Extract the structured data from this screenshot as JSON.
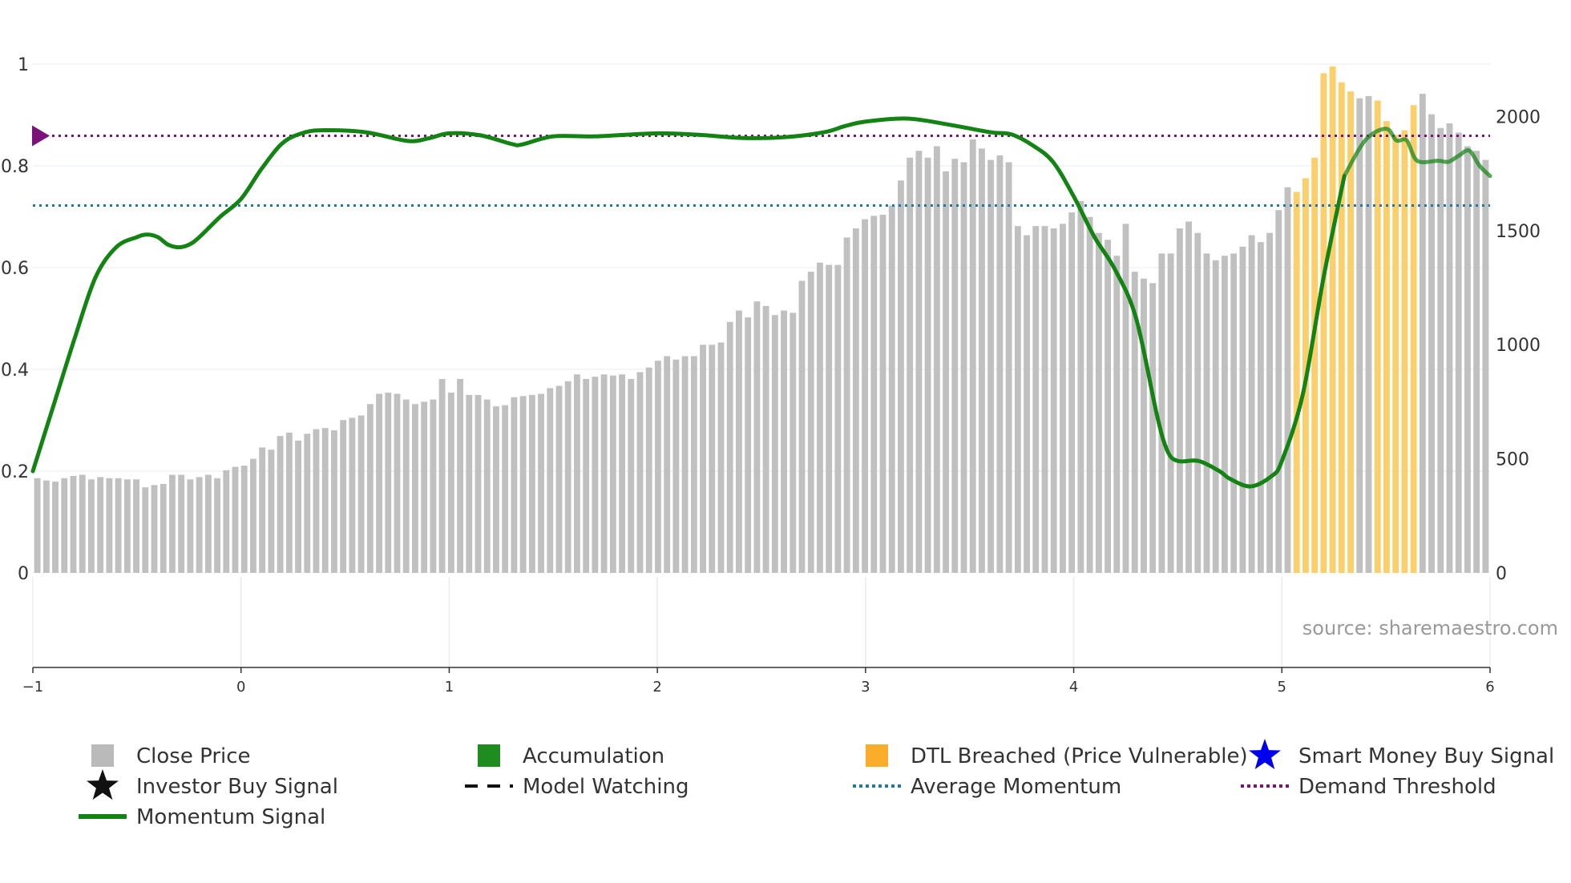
{
  "chart_data": {
    "type": "bar",
    "source": "source: sharemaestro.com",
    "left_axis": {
      "ticks": [
        {
          "v": 0,
          "label": "0"
        },
        {
          "v": 0.2,
          "label": "0.2"
        },
        {
          "v": 0.4,
          "label": "0.4"
        },
        {
          "v": 0.6,
          "label": "0.6"
        },
        {
          "v": 0.8,
          "label": "0.8"
        },
        {
          "v": 1,
          "label": "1"
        }
      ],
      "range": [
        0,
        1
      ]
    },
    "right_axis": {
      "ticks": [
        {
          "v": 0,
          "label": "0"
        },
        {
          "v": 500,
          "label": "500"
        },
        {
          "v": 1000,
          "label": "1000"
        },
        {
          "v": 1500,
          "label": "1500"
        },
        {
          "v": 2000,
          "label": "2000"
        }
      ],
      "range": [
        0,
        2230
      ]
    },
    "x_axis": {
      "ticks": [
        {
          "v": -1,
          "label": "−1"
        },
        {
          "v": 0,
          "label": "0"
        },
        {
          "v": 1,
          "label": "1"
        },
        {
          "v": 2,
          "label": "2"
        },
        {
          "v": 3,
          "label": "3"
        },
        {
          "v": 4,
          "label": "4"
        },
        {
          "v": 5,
          "label": "5"
        },
        {
          "v": 6,
          "label": "6"
        }
      ],
      "range": [
        -1,
        6
      ]
    },
    "close_price": {
      "x_start": -1,
      "x_end": 6,
      "values": [
        415,
        405,
        400,
        415,
        425,
        430,
        410,
        420,
        415,
        415,
        410,
        410,
        375,
        385,
        390,
        430,
        430,
        410,
        420,
        430,
        415,
        450,
        465,
        470,
        500,
        550,
        540,
        600,
        615,
        580,
        610,
        630,
        635,
        625,
        670,
        680,
        690,
        740,
        785,
        790,
        785,
        760,
        740,
        750,
        760,
        850,
        790,
        850,
        780,
        780,
        760,
        730,
        735,
        770,
        775,
        780,
        785,
        810,
        820,
        840,
        870,
        850,
        860,
        870,
        865,
        870,
        850,
        880,
        900,
        930,
        950,
        935,
        950,
        950,
        1000,
        1000,
        1010,
        1100,
        1150,
        1120,
        1190,
        1170,
        1130,
        1150,
        1140,
        1280,
        1320,
        1360,
        1350,
        1350,
        1470,
        1510,
        1550,
        1565,
        1570,
        1610,
        1720,
        1820,
        1850,
        1820,
        1870,
        1760,
        1815,
        1800,
        1900,
        1860,
        1810,
        1830,
        1800,
        1520,
        1480,
        1520,
        1520,
        1510,
        1530,
        1580,
        1630,
        1560,
        1490,
        1460,
        1390,
        1530,
        1320,
        1290,
        1270,
        1400,
        1400,
        1510,
        1540,
        1490,
        1400,
        1370,
        1390,
        1400,
        1430,
        1480,
        1450,
        1490,
        1590,
        1690,
        1670,
        1730,
        1820,
        2190,
        2220,
        2150,
        2110,
        2080,
        2090,
        2070,
        1980,
        1920,
        1940,
        2050,
        2100,
        2010,
        1950,
        1970,
        1930,
        1870,
        1850,
        1810
      ],
      "dtl_breached": [
        140,
        141,
        142,
        143,
        144,
        145,
        146,
        149,
        150,
        151,
        152,
        153
      ]
    },
    "momentum_signal": {
      "points": [
        [
          -1,
          0.2
        ],
        [
          -0.9,
          0.33
        ],
        [
          -0.8,
          0.46
        ],
        [
          -0.7,
          0.58
        ],
        [
          -0.6,
          0.64
        ],
        [
          -0.5,
          0.66
        ],
        [
          -0.45,
          0.665
        ],
        [
          -0.4,
          0.66
        ],
        [
          -0.35,
          0.645
        ],
        [
          -0.3,
          0.64
        ],
        [
          -0.25,
          0.645
        ],
        [
          -0.2,
          0.66
        ],
        [
          -0.1,
          0.7
        ],
        [
          0,
          0.735
        ],
        [
          0.1,
          0.795
        ],
        [
          0.2,
          0.845
        ],
        [
          0.3,
          0.865
        ],
        [
          0.4,
          0.87
        ],
        [
          0.6,
          0.866
        ],
        [
          0.8,
          0.849
        ],
        [
          0.9,
          0.854
        ],
        [
          1,
          0.864
        ],
        [
          1.15,
          0.86
        ],
        [
          1.3,
          0.843
        ],
        [
          1.35,
          0.842
        ],
        [
          1.5,
          0.858
        ],
        [
          1.7,
          0.858
        ],
        [
          2,
          0.864
        ],
        [
          2.2,
          0.861
        ],
        [
          2.4,
          0.855
        ],
        [
          2.6,
          0.856
        ],
        [
          2.8,
          0.866
        ],
        [
          2.9,
          0.878
        ],
        [
          3,
          0.887
        ],
        [
          3.2,
          0.893
        ],
        [
          3.4,
          0.881
        ],
        [
          3.6,
          0.866
        ],
        [
          3.7,
          0.862
        ],
        [
          3.8,
          0.841
        ],
        [
          3.9,
          0.808
        ],
        [
          4,
          0.74
        ],
        [
          4.1,
          0.66
        ],
        [
          4.2,
          0.595
        ],
        [
          4.3,
          0.5
        ],
        [
          4.4,
          0.31
        ],
        [
          4.45,
          0.24
        ],
        [
          4.5,
          0.22
        ],
        [
          4.6,
          0.22
        ],
        [
          4.7,
          0.2
        ],
        [
          4.75,
          0.185
        ],
        [
          4.85,
          0.17
        ],
        [
          4.95,
          0.19
        ],
        [
          5,
          0.22
        ],
        [
          5.1,
          0.35
        ],
        [
          5.2,
          0.58
        ],
        [
          5.3,
          0.78
        ],
        [
          5.4,
          0.85
        ],
        [
          5.5,
          0.873
        ],
        [
          5.55,
          0.85
        ],
        [
          5.6,
          0.85
        ],
        [
          5.65,
          0.81
        ],
        [
          5.75,
          0.81
        ],
        [
          5.8,
          0.808
        ],
        [
          5.85,
          0.82
        ],
        [
          5.9,
          0.83
        ],
        [
          5.95,
          0.8
        ],
        [
          6,
          0.78
        ]
      ],
      "faded_from": 5.28
    },
    "average_momentum": 0.722,
    "demand_threshold": 0.859,
    "colors": {
      "close_price": "#c0c0c0",
      "dtl_breached": "#fccf6d",
      "momentum": "#138413",
      "average_momentum": "#2276a8",
      "demand_threshold": "#7a127a",
      "grid": "#e6edf2",
      "axis": "#333333"
    },
    "legend": [
      {
        "label": "Close Price",
        "icon": "square-icon",
        "color": "#bababa"
      },
      {
        "label": "Accumulation",
        "icon": "square-icon",
        "color": "#1e8c1e"
      },
      {
        "label": "DTL Breached (Price Vulnerable)",
        "icon": "square-icon",
        "color": "#f9ad2a"
      },
      {
        "label": "Smart Money Buy Signal",
        "icon": "star-icon",
        "color": "#0000ee"
      },
      {
        "label": "Investor Buy Signal",
        "icon": "star-icon",
        "color": "#111111"
      },
      {
        "label": "Model Watching",
        "icon": "dash-line-icon",
        "color": "#111111"
      },
      {
        "label": "Average Momentum",
        "icon": "dotted-line-icon",
        "color": "#2276a8"
      },
      {
        "label": "Demand Threshold",
        "icon": "dotted-line-icon",
        "color": "#7a127a"
      },
      {
        "label": "Momentum Signal",
        "icon": "solid-line-icon",
        "color": "#138413"
      }
    ]
  }
}
